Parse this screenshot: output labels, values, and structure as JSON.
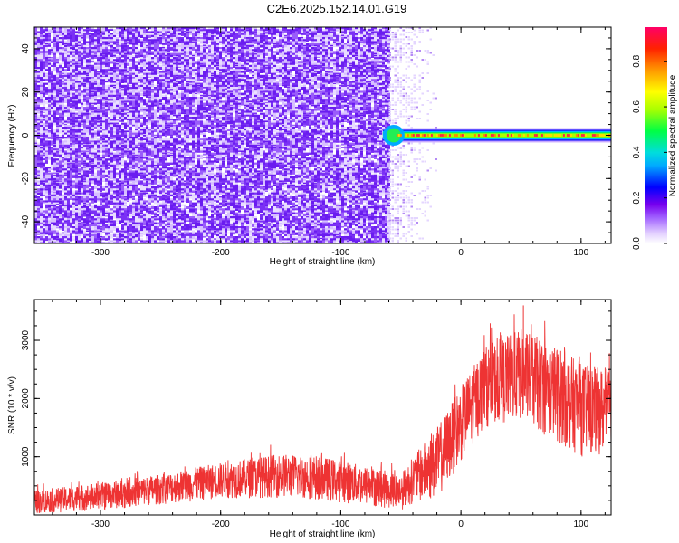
{
  "title": "C2E6.2025.152.14.01.G19",
  "colors": {
    "spectrogram_noise": "#7a2cf0",
    "spectrogram_noise_light": "#c9a6ff",
    "snr_trace": "#ee3333",
    "colorbar": [
      "#ffffff",
      "#e0ccff",
      "#7700ee",
      "#0000ff",
      "#00ccff",
      "#00ff44",
      "#ffff00",
      "#ff8800",
      "#ff0044",
      "#ff0066"
    ]
  },
  "chart_data": [
    {
      "type": "heatmap",
      "name": "spectrogram",
      "xlabel": "Height of straight line (km)",
      "ylabel": "Frequency (Hz)",
      "xlim": [
        -355,
        125
      ],
      "ylim": [
        -50,
        50
      ],
      "x_ticks": [
        -300,
        -200,
        -100,
        0,
        100
      ],
      "y_ticks": [
        -40,
        -20,
        0,
        20,
        40
      ],
      "colorbar": {
        "label": "Normalized spectral amplitude",
        "range": [
          0,
          0.95
        ],
        "ticks": [
          0.0,
          0.2,
          0.4,
          0.6,
          0.8
        ]
      },
      "regions": [
        {
          "kind": "noise",
          "x_range": [
            -355,
            -60
          ],
          "amplitude_range": [
            0.05,
            0.2
          ]
        },
        {
          "kind": "sparse_noise",
          "x_range": [
            -60,
            -20
          ],
          "amplitude_range": [
            0.0,
            0.08
          ]
        },
        {
          "kind": "signal_band",
          "x_range": [
            -65,
            125
          ],
          "frequency_center": 0,
          "half_width_hz": 3,
          "peak_amplitude": 0.9
        }
      ]
    },
    {
      "type": "line",
      "name": "snr",
      "xlabel": "Height of straight line (km)",
      "ylabel": "SNR (10 * v/v)",
      "xlim": [
        -355,
        125
      ],
      "ylim": [
        0,
        3700
      ],
      "x_ticks": [
        -300,
        -200,
        -100,
        0,
        100
      ],
      "y_ticks": [
        1000,
        2000,
        3000
      ],
      "series": [
        {
          "envelope_points": [
            {
              "x": -355,
              "lower": 20,
              "upper": 420
            },
            {
              "x": -300,
              "lower": 80,
              "upper": 560
            },
            {
              "x": -250,
              "lower": 180,
              "upper": 700
            },
            {
              "x": -200,
              "lower": 280,
              "upper": 900
            },
            {
              "x": -150,
              "lower": 300,
              "upper": 1050
            },
            {
              "x": -120,
              "lower": 260,
              "upper": 1020
            },
            {
              "x": -80,
              "lower": 160,
              "upper": 850
            },
            {
              "x": -50,
              "lower": 80,
              "upper": 700
            },
            {
              "x": -40,
              "lower": 200,
              "upper": 1000
            },
            {
              "x": -20,
              "lower": 250,
              "upper": 1500
            },
            {
              "x": 0,
              "lower": 900,
              "upper": 2200
            },
            {
              "x": 20,
              "lower": 1500,
              "upper": 2900
            },
            {
              "x": 50,
              "lower": 1600,
              "upper": 3200
            },
            {
              "x": 80,
              "lower": 1250,
              "upper": 2900
            },
            {
              "x": 100,
              "lower": 1000,
              "upper": 2600
            },
            {
              "x": 125,
              "lower": 1050,
              "upper": 2500
            }
          ],
          "peak_value": 3600
        }
      ]
    }
  ]
}
